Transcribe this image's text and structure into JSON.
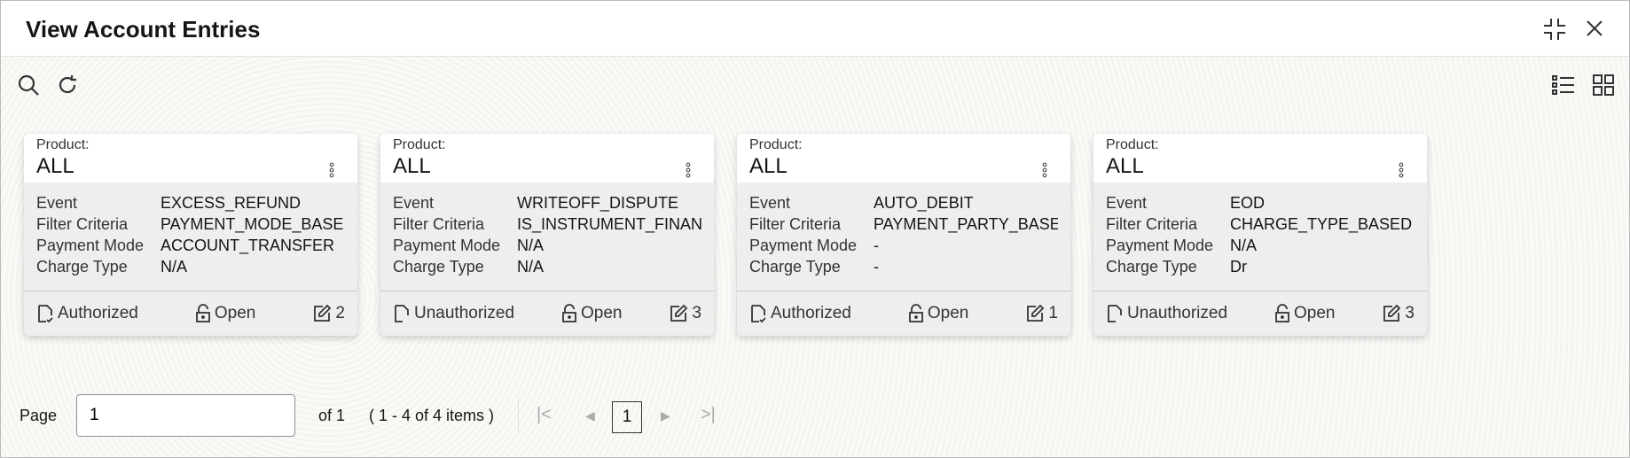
{
  "window": {
    "title": "View Account Entries"
  },
  "cards": [
    {
      "product_label": "Product:",
      "product": "ALL",
      "fields": [
        {
          "k": "Event",
          "v": "EXCESS_REFUND"
        },
        {
          "k": "Filter Criteria",
          "v": "PAYMENT_MODE_BASE"
        },
        {
          "k": "Payment Mode",
          "v": "ACCOUNT_TRANSFER"
        },
        {
          "k": "Charge Type",
          "v": "N/A"
        }
      ],
      "status": "Authorized",
      "lock": "Open",
      "edits": "2"
    },
    {
      "product_label": "Product:",
      "product": "ALL",
      "fields": [
        {
          "k": "Event",
          "v": "WRITEOFF_DISPUTE"
        },
        {
          "k": "Filter Criteria",
          "v": "IS_INSTRUMENT_FINAN"
        },
        {
          "k": "Payment Mode",
          "v": "N/A"
        },
        {
          "k": "Charge Type",
          "v": "N/A"
        }
      ],
      "status": "Unauthorized",
      "lock": "Open",
      "edits": "3"
    },
    {
      "product_label": "Product:",
      "product": "ALL",
      "fields": [
        {
          "k": "Event",
          "v": "AUTO_DEBIT"
        },
        {
          "k": "Filter Criteria",
          "v": "PAYMENT_PARTY_BASE"
        },
        {
          "k": "Payment Mode",
          "v": "-"
        },
        {
          "k": "Charge Type",
          "v": "-"
        }
      ],
      "status": "Authorized",
      "lock": "Open",
      "edits": "1"
    },
    {
      "product_label": "Product:",
      "product": "ALL",
      "fields": [
        {
          "k": "Event",
          "v": "EOD"
        },
        {
          "k": "Filter Criteria",
          "v": "CHARGE_TYPE_BASED"
        },
        {
          "k": "Payment Mode",
          "v": "N/A"
        },
        {
          "k": "Charge Type",
          "v": "Dr"
        }
      ],
      "status": "Unauthorized",
      "lock": "Open",
      "edits": "3"
    }
  ],
  "pager": {
    "label": "Page",
    "value": "1",
    "of": "of 1",
    "items": "( 1 - 4 of 4 items )",
    "current": "1"
  }
}
